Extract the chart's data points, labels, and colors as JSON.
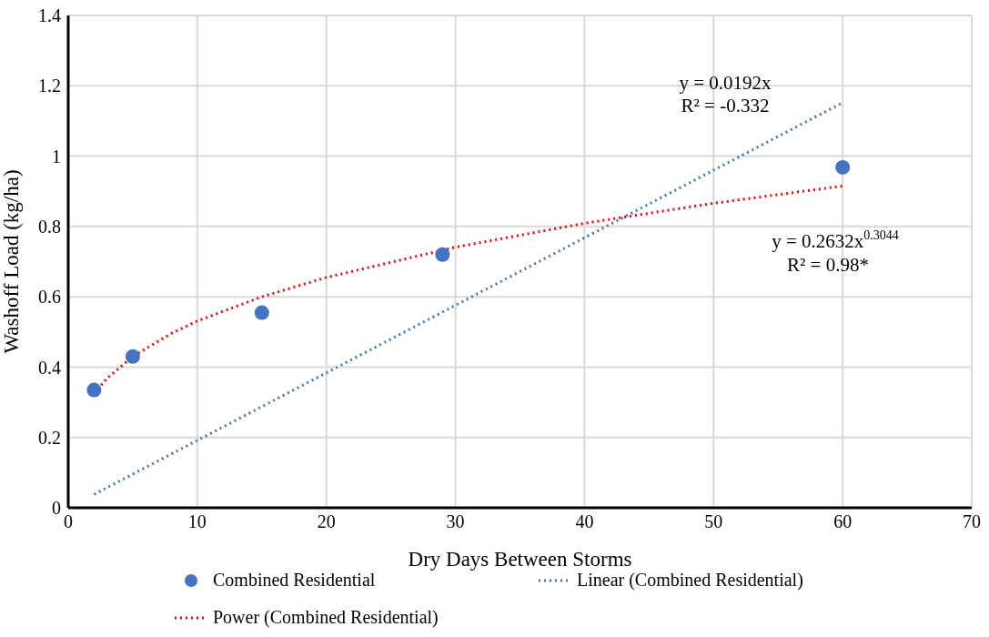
{
  "chart_data": {
    "type": "scatter",
    "xlabel": "Dry Days Between Storms",
    "ylabel": "Washoff Load (kg/ha)",
    "xlim": [
      0,
      70
    ],
    "xticks": [
      0,
      10,
      20,
      30,
      40,
      50,
      60,
      70
    ],
    "ylim": [
      0,
      1.4
    ],
    "yticks": [
      0,
      0.2,
      0.4,
      0.6,
      0.8,
      1,
      1.2,
      1.4
    ],
    "grid": true,
    "legend": "bottom",
    "series": [
      {
        "name": "Combined Residential",
        "color": "#4472c4",
        "marker": "circle",
        "x": [
          2,
          5,
          15,
          29,
          60
        ],
        "values": [
          0.335,
          0.43,
          0.555,
          0.72,
          0.968
        ]
      },
      {
        "name": "Linear (Combined Residential)",
        "type": "line",
        "color": "#4472c4",
        "marker": "none",
        "line_style": "dotted",
        "x": [
          2,
          60
        ],
        "values": [
          0.038,
          1.152
        ]
      },
      {
        "name": "Power (Combined Residential)",
        "type": "line",
        "color": "#ff0000",
        "marker": "none",
        "line_style": "dotted",
        "x": [
          2,
          3,
          5,
          8,
          10,
          15,
          20,
          30,
          40,
          50,
          60
        ],
        "values": [
          0.325,
          0.368,
          0.43,
          0.496,
          0.531,
          0.6,
          0.655,
          0.741,
          0.809,
          0.866,
          0.915
        ]
      }
    ],
    "annotations": [
      "y = 0.0192x",
      "R² = -0.332",
      "y = 0.2632x$^{0.3044}$",
      "R² = 0.98*"
    ]
  }
}
